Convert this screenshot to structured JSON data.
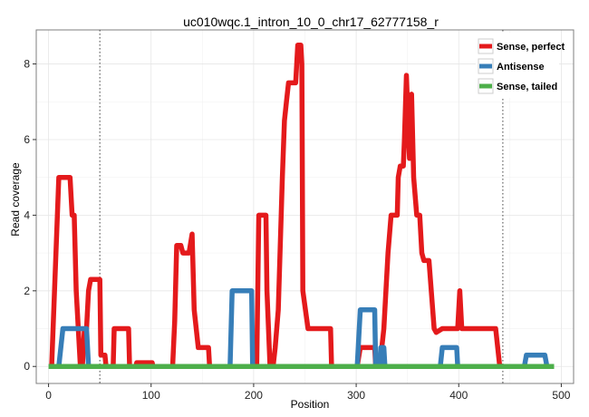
{
  "chart_data": {
    "type": "line",
    "title": "uc010wqc.1_intron_10_0_chr17_62777158_r",
    "xlabel": "Position",
    "ylabel": "Read coverage",
    "xlim": [
      -12,
      512
    ],
    "ylim": [
      -0.45,
      8.9
    ],
    "xticks": [
      0,
      100,
      200,
      300,
      400,
      500
    ],
    "yticks": [
      0,
      2,
      4,
      6,
      8
    ],
    "grid": true,
    "legend_position": "top-right",
    "vlines": [
      50,
      443
    ],
    "series": [
      {
        "name": "Sense, perfect",
        "color": "#e41a1c",
        "points": [
          [
            3,
            0
          ],
          [
            10,
            5
          ],
          [
            21,
            5
          ],
          [
            23,
            4
          ],
          [
            25,
            4
          ],
          [
            27,
            2
          ],
          [
            31,
            0
          ],
          [
            33,
            0
          ],
          [
            35,
            1
          ],
          [
            37,
            1
          ],
          [
            39,
            2
          ],
          [
            41,
            2.3
          ],
          [
            50,
            2.3
          ],
          [
            51,
            0.3
          ],
          [
            55,
            0.3
          ],
          [
            56,
            0
          ],
          [
            63,
            0
          ],
          [
            64,
            1
          ],
          [
            78,
            1
          ],
          [
            79,
            0
          ],
          [
            85,
            0
          ],
          [
            86,
            0.1
          ],
          [
            101,
            0.1
          ],
          [
            102,
            0
          ],
          [
            121,
            0
          ],
          [
            123,
            1.2
          ],
          [
            125,
            3.2
          ],
          [
            129,
            3.2
          ],
          [
            131,
            3
          ],
          [
            137,
            3
          ],
          [
            140,
            3.5
          ],
          [
            142,
            1.5
          ],
          [
            146,
            0.5
          ],
          [
            156,
            0.5
          ],
          [
            157,
            0
          ],
          [
            203,
            0
          ],
          [
            205,
            4
          ],
          [
            210,
            4
          ],
          [
            212,
            4
          ],
          [
            213,
            2
          ],
          [
            216,
            0
          ],
          [
            219,
            0
          ],
          [
            221,
            0.5
          ],
          [
            224,
            1.5
          ],
          [
            228,
            5
          ],
          [
            230,
            6.5
          ],
          [
            232,
            7
          ],
          [
            234,
            7.5
          ],
          [
            241,
            7.5
          ],
          [
            243,
            8.5
          ],
          [
            246,
            8.5
          ],
          [
            247,
            8
          ],
          [
            248,
            2
          ],
          [
            253,
            1
          ],
          [
            275,
            1
          ],
          [
            276,
            0
          ],
          [
            301,
            0
          ],
          [
            304,
            0.5
          ],
          [
            318,
            0.5
          ],
          [
            319,
            0
          ],
          [
            323,
            0
          ],
          [
            327,
            1
          ],
          [
            329,
            2
          ],
          [
            331,
            3
          ],
          [
            334,
            4
          ],
          [
            339,
            4
          ],
          [
            340,
            4
          ],
          [
            341,
            5
          ],
          [
            343,
            5.3
          ],
          [
            346,
            5.3
          ],
          [
            347,
            6
          ],
          [
            349,
            7.7
          ],
          [
            352,
            5.5
          ],
          [
            354,
            7.2
          ],
          [
            356,
            5
          ],
          [
            359,
            4
          ],
          [
            362,
            4
          ],
          [
            364,
            3
          ],
          [
            366,
            2.8
          ],
          [
            371,
            2.8
          ],
          [
            376,
            1
          ],
          [
            378,
            0.9
          ],
          [
            384,
            1
          ],
          [
            399,
            1
          ],
          [
            401,
            2
          ],
          [
            403,
            1
          ],
          [
            436,
            1
          ],
          [
            440,
            0
          ]
        ]
      },
      {
        "name": "Antisense",
        "color": "#377eb8",
        "points": [
          [
            10,
            0
          ],
          [
            14,
            1
          ],
          [
            37,
            1
          ],
          [
            39,
            0
          ],
          [
            177,
            0
          ],
          [
            179,
            2
          ],
          [
            198,
            2
          ],
          [
            199,
            0
          ],
          [
            301,
            0
          ],
          [
            304,
            1.5
          ],
          [
            318,
            1.5
          ],
          [
            319,
            0
          ],
          [
            323,
            0
          ],
          [
            324,
            0.5
          ],
          [
            327,
            0.5
          ],
          [
            328,
            0
          ],
          [
            382,
            0
          ],
          [
            384,
            0.5
          ],
          [
            398,
            0.5
          ],
          [
            399,
            0
          ],
          [
            464,
            0
          ],
          [
            466,
            0.3
          ],
          [
            484,
            0.3
          ],
          [
            486,
            0
          ]
        ]
      },
      {
        "name": "Sense, tailed",
        "color": "#4daf4a",
        "points": [
          [
            0,
            0
          ],
          [
            493,
            0
          ]
        ]
      }
    ]
  }
}
